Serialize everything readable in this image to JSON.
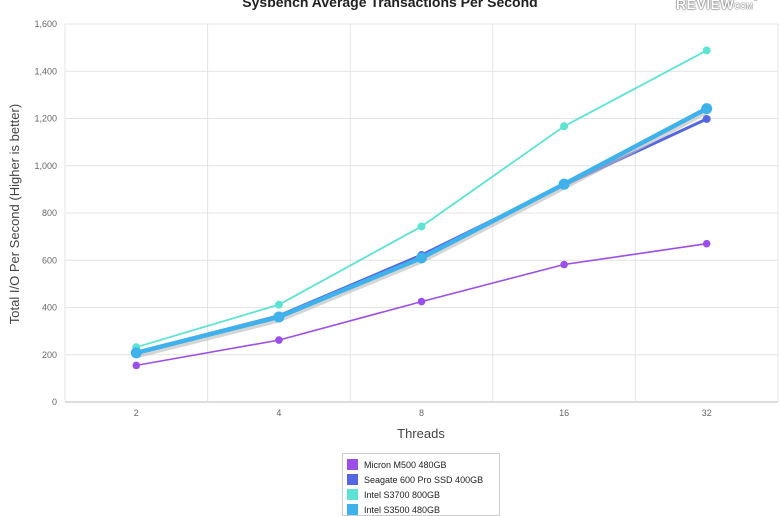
{
  "chart_data": {
    "type": "line",
    "title": "Sysbench Average Transactions Per Second",
    "xlabel": "Threads",
    "ylabel": "Total I/O Per Second (Higher is better)",
    "categories": [
      "2",
      "4",
      "8",
      "16",
      "32"
    ],
    "ylim": [
      0,
      1600
    ],
    "yticks": [
      "0",
      "200",
      "400",
      "600",
      "800",
      "1,000",
      "1,200",
      "1,400",
      "1,600"
    ],
    "grid": true,
    "legend_position": "bottom",
    "series": [
      {
        "name": "Micron M500 480GB",
        "color": "#9b4fe8",
        "values": [
          155,
          262,
          425,
          582,
          670
        ]
      },
      {
        "name": "Seagate 600 Pro SSD 400GB",
        "color": "#5566e0",
        "values": [
          210,
          365,
          622,
          918,
          1198
        ]
      },
      {
        "name": "Intel S3700 800GB",
        "color": "#5de3d3",
        "values": [
          232,
          412,
          743,
          1167,
          1488
        ]
      },
      {
        "name": "Intel S3500 480GB",
        "color": "#3fb2ec",
        "values": [
          208,
          360,
          610,
          922,
          1242
        ]
      }
    ]
  },
  "logo": {
    "text": "REVIEW",
    "suffix": "COM",
    "registered": "®"
  }
}
